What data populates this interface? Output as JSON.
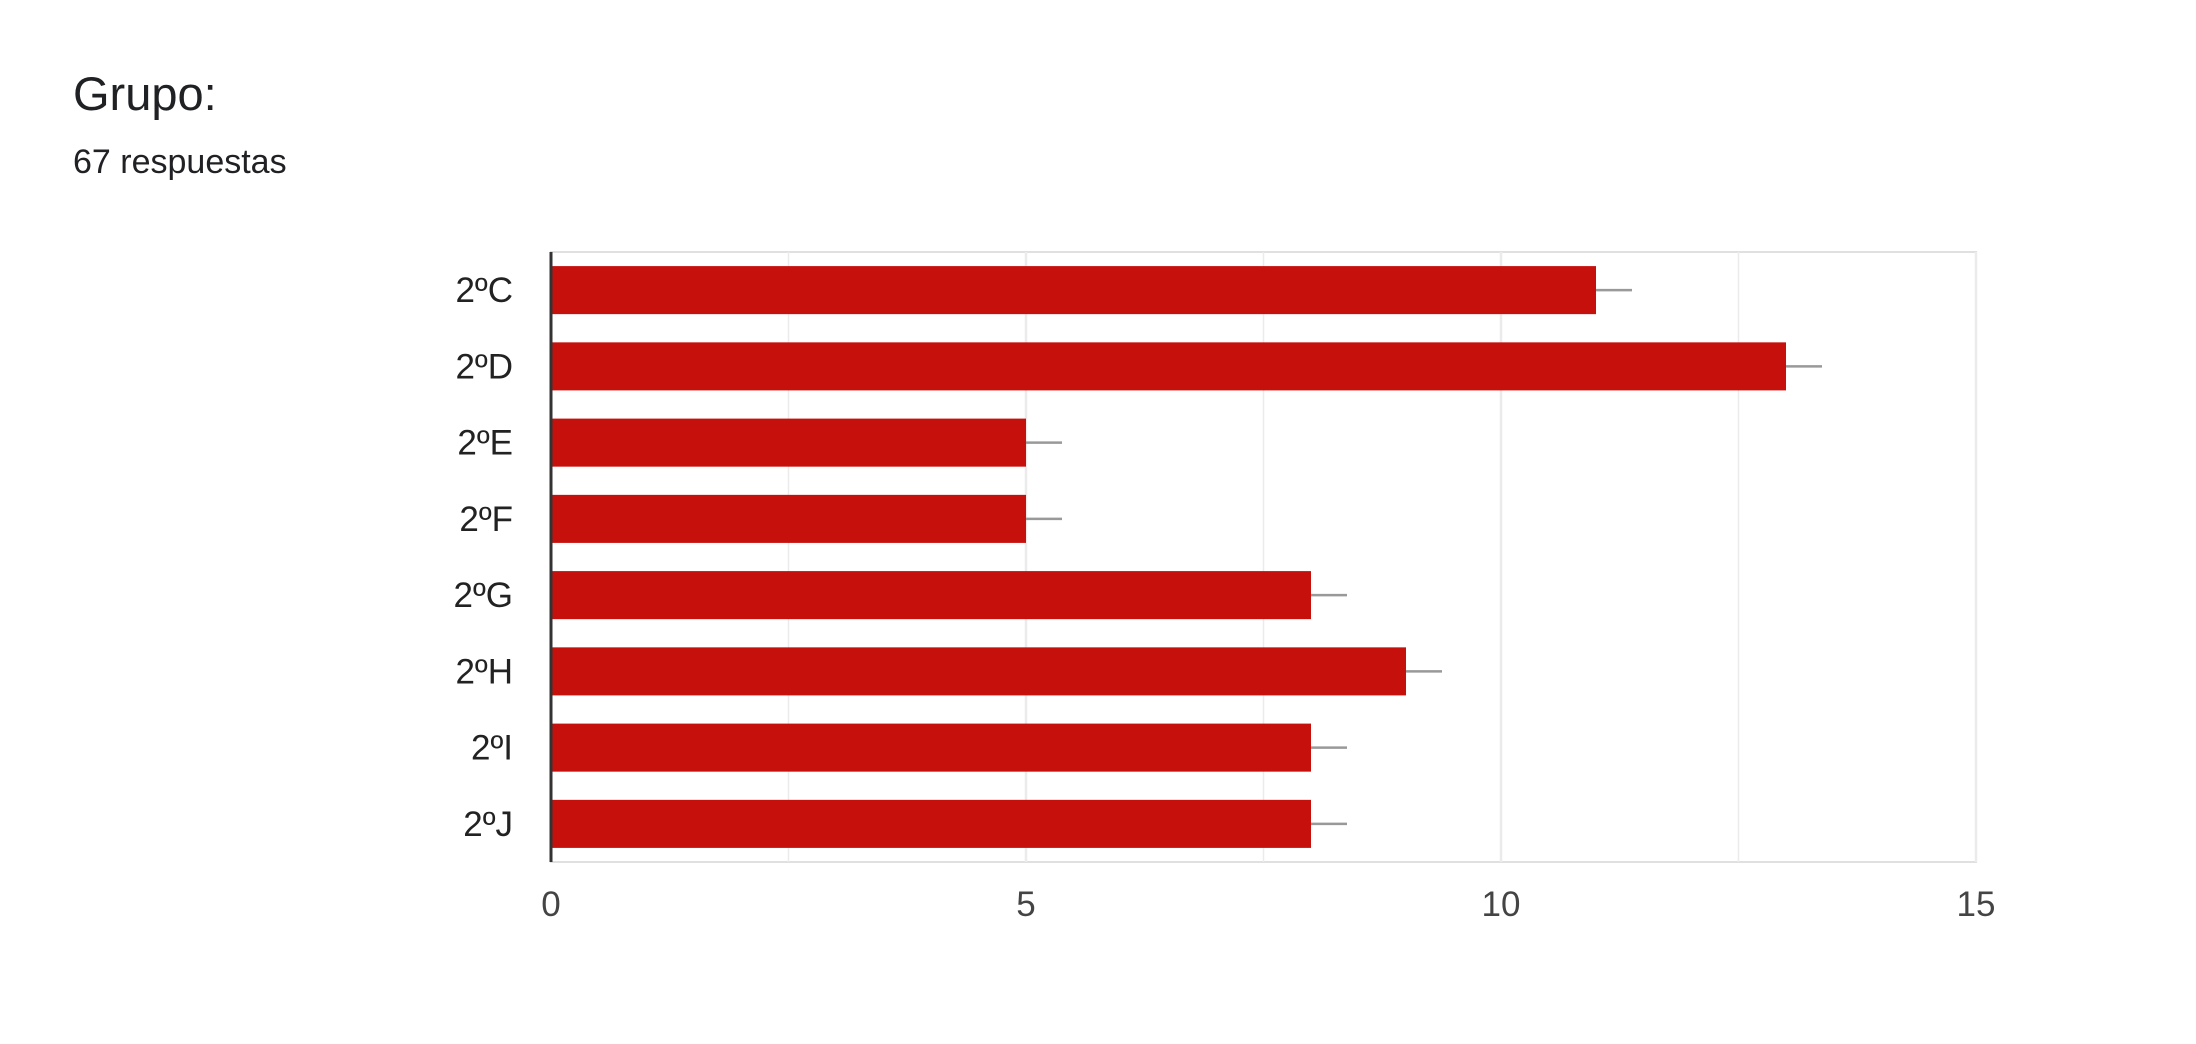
{
  "question": {
    "title": "Grupo:",
    "responses": "67 respuestas"
  },
  "colors": {
    "bar": "#c5100c",
    "errorbar": "#999999",
    "grid": "#ebebeb",
    "axis": "#333333",
    "frame": "#e0e0e0"
  },
  "chart_data": {
    "type": "bar",
    "orientation": "horizontal",
    "categories": [
      "2ºC",
      "2ºD",
      "2ºE",
      "2ºF",
      "2ºG",
      "2ºH",
      "2ºI",
      "2ºJ"
    ],
    "values": [
      11,
      13,
      5,
      5,
      8,
      9,
      8,
      8
    ],
    "xlim": [
      0,
      15
    ],
    "xticks": [
      "0",
      "5",
      "10",
      "15"
    ],
    "xlabel": "",
    "ylabel": "",
    "grid": true,
    "legend": "none"
  }
}
